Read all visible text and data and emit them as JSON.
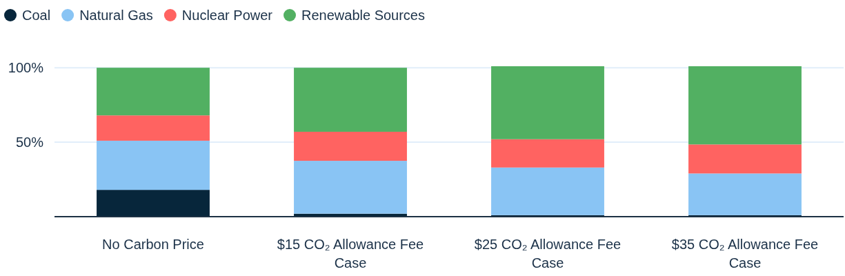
{
  "chart_data": {
    "type": "bar",
    "stacked": true,
    "categories": [
      "No Carbon Price",
      "$15 CO₂ Allowance Fee Case",
      "$25 CO₂ Allowance Fee Case",
      "$35 CO₂ Allowance Fee Case"
    ],
    "series": [
      {
        "name": "Coal",
        "color": "#07263b",
        "values": [
          18,
          2,
          1,
          1
        ]
      },
      {
        "name": "Natural Gas",
        "color": "#89c4f4",
        "values": [
          33,
          35.5,
          32,
          28
        ]
      },
      {
        "name": "Nuclear Power",
        "color": "#ff6361",
        "values": [
          17,
          19.5,
          19,
          19.5
        ]
      },
      {
        "name": "Renewable Sources",
        "color": "#52b062",
        "values": [
          32,
          43,
          49,
          52.5
        ]
      }
    ],
    "ylim": [
      0,
      101
    ],
    "yticks": [
      {
        "value": 50,
        "label": "50%"
      },
      {
        "value": 100,
        "label": "100%"
      }
    ],
    "grid": "y",
    "legend": "top left"
  }
}
